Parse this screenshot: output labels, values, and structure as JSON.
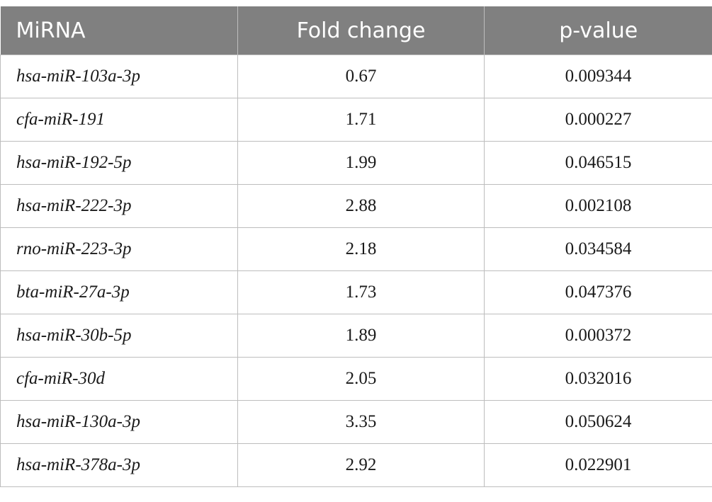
{
  "table": {
    "header": [
      "MiRNA",
      "Fold change",
      "p-value"
    ],
    "rows": [
      [
        "hsa-miR-103a-3p",
        "0.67",
        "0.009344"
      ],
      [
        "cfa-miR-191",
        "1.71",
        "0.000227"
      ],
      [
        "hsa-miR-192-5p",
        "1.99",
        "0.046515"
      ],
      [
        "hsa-miR-222-3p",
        "2.88",
        "0.002108"
      ],
      [
        "rno-miR-223-3p",
        "2.18",
        "0.034584"
      ],
      [
        "bta-miR-27a-3p",
        "1.73",
        "0.047376"
      ],
      [
        "hsa-miR-30b-5p",
        "1.89",
        "0.000372"
      ],
      [
        "cfa-miR-30d",
        "2.05",
        "0.032016"
      ],
      [
        "hsa-miR-130a-3p",
        "3.35",
        "0.050624"
      ],
      [
        "hsa-miR-378a-3p",
        "2.92",
        "0.022901"
      ]
    ]
  }
}
